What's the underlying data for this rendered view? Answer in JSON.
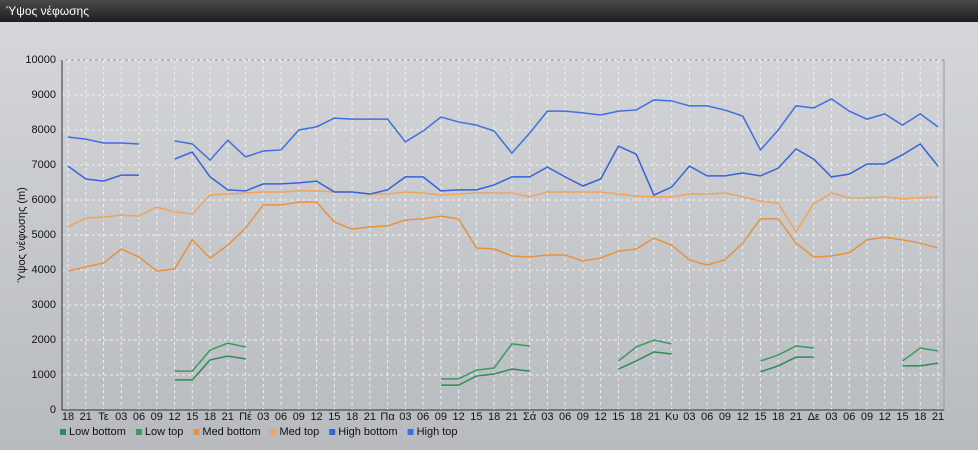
{
  "chart_data": {
    "type": "line",
    "title": "Ύψος νέφωσης",
    "ylabel": "Ύψος νέφωσης (m)",
    "categories": [
      "18",
      "21",
      "Τε",
      "03",
      "06",
      "09",
      "12",
      "15",
      "18",
      "21",
      "Πέ",
      "03",
      "06",
      "09",
      "12",
      "15",
      "18",
      "21",
      "Πα",
      "03",
      "06",
      "09",
      "12",
      "15",
      "18",
      "21",
      "Σά",
      "03",
      "06",
      "09",
      "12",
      "15",
      "18",
      "21",
      "Κυ",
      "03",
      "06",
      "09",
      "12",
      "15",
      "18",
      "21",
      "Δε",
      "03",
      "06",
      "09",
      "12",
      "15",
      "18",
      "21"
    ],
    "ylim": [
      0,
      10000
    ],
    "yticks": [
      0,
      1000,
      2000,
      3000,
      4000,
      5000,
      6000,
      7000,
      8000,
      9000,
      10000
    ],
    "grid": true,
    "legend": "bottom",
    "series": [
      {
        "name": "Low bottom",
        "color": "#2e8a58",
        "values": [
          null,
          null,
          null,
          null,
          null,
          null,
          860,
          860,
          1430,
          1540,
          1460,
          null,
          null,
          null,
          null,
          null,
          null,
          null,
          null,
          null,
          null,
          710,
          710,
          970,
          1030,
          1170,
          1110,
          null,
          null,
          null,
          null,
          1170,
          1400,
          1660,
          1600,
          null,
          null,
          null,
          null,
          1090,
          1260,
          1510,
          1510,
          null,
          null,
          null,
          null,
          1260,
          1260,
          1340
        ]
      },
      {
        "name": "Low top",
        "color": "#3a9a62",
        "values": [
          null,
          null,
          null,
          null,
          null,
          null,
          1110,
          1110,
          1710,
          1910,
          1800,
          null,
          null,
          null,
          null,
          null,
          null,
          null,
          null,
          null,
          null,
          890,
          890,
          1140,
          1200,
          1890,
          1830,
          null,
          null,
          null,
          null,
          1400,
          1800,
          2000,
          1890,
          null,
          null,
          null,
          null,
          1400,
          1570,
          1830,
          1770,
          null,
          null,
          null,
          null,
          1400,
          1770,
          1690
        ]
      },
      {
        "name": "Med bottom",
        "color": "#e8913e",
        "values": [
          3970,
          4090,
          4200,
          4600,
          4370,
          3970,
          4030,
          4860,
          4340,
          4710,
          5200,
          5860,
          5860,
          5940,
          5940,
          5370,
          5170,
          5230,
          5260,
          5430,
          5460,
          5540,
          5460,
          4630,
          4600,
          4400,
          4370,
          4430,
          4430,
          4260,
          4340,
          4540,
          4600,
          4910,
          4710,
          4290,
          4140,
          4290,
          4770,
          5460,
          5460,
          4770,
          4370,
          4400,
          4490,
          4860,
          4940,
          4860,
          4770,
          4630
        ]
      },
      {
        "name": "Med top",
        "color": "#f0a35c",
        "values": [
          5230,
          5490,
          5510,
          5570,
          5540,
          5800,
          5660,
          5600,
          6140,
          6170,
          6200,
          6230,
          6230,
          6260,
          6260,
          6230,
          6230,
          6170,
          6170,
          6230,
          6200,
          6140,
          6170,
          6200,
          6200,
          6200,
          6090,
          6230,
          6230,
          6230,
          6230,
          6170,
          6110,
          6090,
          6090,
          6170,
          6170,
          6200,
          6090,
          5970,
          5910,
          5090,
          5890,
          6200,
          6060,
          6060,
          6090,
          6030,
          6060,
          6090
        ]
      },
      {
        "name": "High bottom",
        "color": "#3563d8",
        "values": [
          6970,
          6600,
          6540,
          6710,
          6710,
          null,
          7170,
          7370,
          6660,
          6290,
          6260,
          6460,
          6460,
          6490,
          6540,
          6230,
          6230,
          6170,
          6290,
          6660,
          6660,
          6260,
          6290,
          6290,
          6430,
          6660,
          6660,
          6940,
          6660,
          6400,
          6600,
          7540,
          7310,
          6140,
          6370,
          6970,
          6690,
          6690,
          6770,
          6690,
          6910,
          7460,
          7170,
          6660,
          6740,
          7030,
          7030,
          7290,
          7600,
          6970
        ]
      },
      {
        "name": "High top",
        "color": "#3f6fe0",
        "values": [
          7800,
          7740,
          7630,
          7630,
          7600,
          null,
          7690,
          7600,
          7140,
          7710,
          7230,
          7400,
          7430,
          8000,
          8090,
          8340,
          8310,
          8310,
          8310,
          7660,
          7970,
          8370,
          8230,
          8140,
          7970,
          7340,
          7910,
          8540,
          8540,
          8490,
          8430,
          8540,
          8570,
          8860,
          8830,
          8690,
          8690,
          8570,
          8400,
          7430,
          8000,
          8690,
          8630,
          8890,
          8540,
          8310,
          8460,
          8140,
          8460,
          8090
        ]
      }
    ]
  }
}
